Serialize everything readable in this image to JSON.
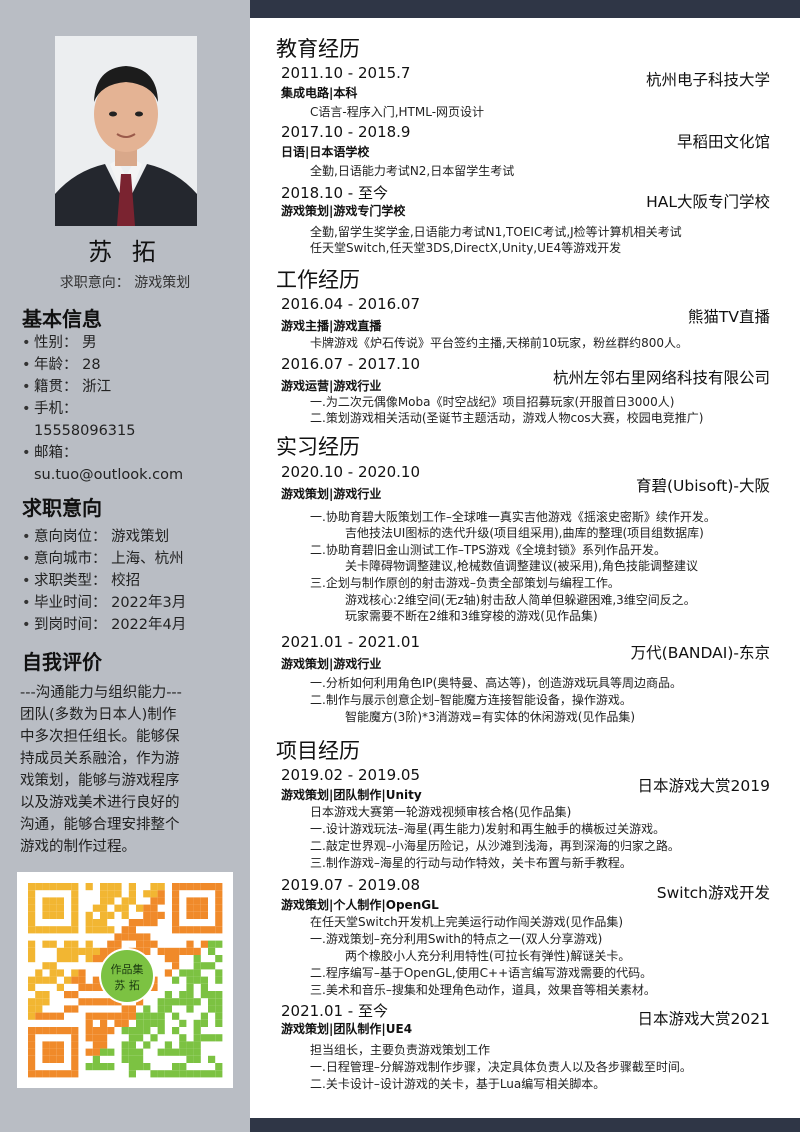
{
  "profile": {
    "name": "苏 拓",
    "intent": "求职意向：  游戏策划"
  },
  "basic": {
    "title": "基本信息",
    "gender": "性别：  男",
    "age": "年龄：  28",
    "origin": "籍贯：  浙江",
    "phone_label": "手机：",
    "phone": "15558096315",
    "email_label": "邮箱：",
    "email": "su.tuo@outlook.com"
  },
  "job": {
    "title": "求职意向",
    "items": [
      "意向岗位：  游戏策划",
      "意向城市：  上海、杭州",
      "求职类型：  校招",
      "毕业时间：  2022年3月",
      "到岗时间：  2022年4月"
    ]
  },
  "self": {
    "title": "自我评价",
    "lines": [
      "---沟通能力与组织能力---",
      "团队(多数为日本人)制作",
      "中多次担任组长。能够保",
      "持成员关系融洽，作为游",
      "戏策划，能够与游戏程序",
      "以及游戏美术进行良好的",
      "沟通，能够合理安排整个",
      "游戏的制作过程。"
    ]
  },
  "qr": {
    "label1": "作品集",
    "label2": "苏 拓"
  },
  "education": {
    "title": "教育经历",
    "entries": [
      {
        "date": "2011.10 - 2015.7",
        "org": "杭州电子科技大学",
        "role": "集成电路|本科",
        "desc": [
          "C语言-程序入门,HTML-网页设计"
        ]
      },
      {
        "date": "2017.10 - 2018.9",
        "org": "早稻田文化馆",
        "role": "日语|日本语学校",
        "desc": [
          "全勤,日语能力考试N2,日本留学生考试"
        ]
      },
      {
        "date": "2018.10 - 至今",
        "org": "HAL大阪专门学校",
        "role": "游戏策划|游戏专门学校",
        "desc": [
          "全勤,留学生奖学金,日语能力考试N1,TOEIC考试,J检等计算机相关考试",
          "任天堂Switch,任天堂3DS,DirectX,Unity,UE4等游戏开发"
        ]
      }
    ]
  },
  "work": {
    "title": "工作经历",
    "entries": [
      {
        "date": "2016.04 - 2016.07",
        "org": "熊猫TV直播",
        "role": "游戏主播|游戏直播",
        "desc": [
          "卡牌游戏《炉石传说》平台签约主播,天梯前10玩家，粉丝群约800人。"
        ]
      },
      {
        "date": "2016.07 - 2017.10",
        "org": "杭州左邻右里网络科技有限公司",
        "role": "游戏运营|游戏行业",
        "desc": [
          "一.为二次元偶像Moba《时空战纪》项目招募玩家(开服首日3000人)",
          "二.策划游戏相关活动(圣诞节主题活动，游戏人物cos大赛，校园电竞推广)"
        ]
      }
    ]
  },
  "intern": {
    "title": "实习经历",
    "entries": [
      {
        "date": "2020.10 - 2020.10",
        "org": "育碧(Ubisoft)-大阪",
        "role": "游戏策划|游戏行业",
        "desc": [
          "一.协助育碧大阪策划工作–全球唯一真实吉他游戏《摇滚史密斯》续作开发。",
          "吉他技法UI图标的迭代升级(项目组采用),曲库的整理(项目组数据库)",
          "二.协助育碧旧金山测试工作–TPS游戏《全境封锁》系列作品开发。",
          "关卡障碍物调整建议,枪械数值调整建议(被采用),角色技能调整建议",
          "三.企划与制作原创的射击游戏–负责全部策划与编程工作。",
          "游戏核心:2维空间(无z轴)射击敌人简单但躲避困难,3维空间反之。",
          "玩家需要不断在2维和3维穿梭的游戏(见作品集)"
        ]
      },
      {
        "date": "2021.01 - 2021.01",
        "org": "万代(BANDAI)-东京",
        "role": "游戏策划|游戏行业",
        "desc": [
          "一.分析如何利用角色IP(奥特曼、高达等)，创造游戏玩具等周边商品。",
          "二.制作与展示创意企划–智能魔方连接智能设备，操作游戏。",
          "智能魔方(3阶)*3消游戏=有实体的休闲游戏(见作品集)"
        ]
      }
    ]
  },
  "project": {
    "title": "项目经历",
    "entries": [
      {
        "date": "2019.02 - 2019.05",
        "org": "日本游戏大赏2019",
        "role": "游戏策划|团队制作|Unity",
        "desc": [
          "日本游戏大赛第一轮游戏视频审核合格(见作品集)",
          "一.设计游戏玩法–海星(再生能力)发射和再生触手的横板过关游戏。",
          "二.敲定世界观–小海星历险记，从沙滩到浅海，再到深海的归家之路。",
          "三.制作游戏–海星的行动与动作特效，关卡布置与新手教程。"
        ]
      },
      {
        "date": "2019.07 - 2019.08",
        "org": "Switch游戏开发",
        "role": "游戏策划|个人制作|OpenGL",
        "desc": [
          "在任天堂Switch开发机上完美运行动作闯关游戏(见作品集)",
          "一.游戏策划–充分利用Swith的特点之一(双人分享游戏)",
          "两个橡胶小人充分利用特性(可拉长有弹性)解谜关卡。",
          "二.程序编写–基于OpenGL,使用C++语言编写游戏需要的代码。",
          "三.美术和音乐–搜集和处理角色动作，道具，效果音等相关素材。"
        ]
      },
      {
        "date": "2021.01 - 至今",
        "org": "日本游戏大赏2021",
        "role": "游戏策划|团队制作|UE4",
        "desc": [
          "担当组长，主要负责游戏策划工作",
          "一.日程管理–分解游戏制作步骤，决定具体负责人以及各步骤截至时间。",
          "二.关卡设计–设计游戏的关卡，基于Lua编写相关脚本。"
        ]
      }
    ]
  }
}
